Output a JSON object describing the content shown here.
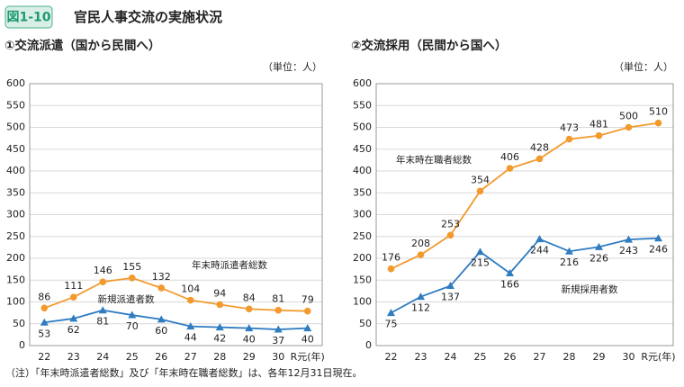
{
  "header": {
    "badge": "図1-10",
    "title": "官民人事交流の実施状況"
  },
  "chart_data": [
    {
      "type": "line",
      "title": "①交流派遣（国から民間へ）",
      "unit": "（単位：人）",
      "categories": [
        "22",
        "23",
        "24",
        "25",
        "26",
        "27",
        "28",
        "29",
        "30",
        "R元(年)"
      ],
      "ylim": [
        0,
        600
      ],
      "yticks": [
        0,
        50,
        100,
        150,
        200,
        250,
        300,
        350,
        400,
        450,
        500,
        550,
        600
      ],
      "grid": true,
      "series": [
        {
          "name": "年末時派遣者総数",
          "color": "#f39a2e",
          "marker": "circle",
          "values": [
            86,
            111,
            146,
            155,
            132,
            104,
            94,
            84,
            81,
            79
          ]
        },
        {
          "name": "新規派遣者数",
          "color": "#2f7cc1",
          "marker": "triangle",
          "values": [
            53,
            62,
            81,
            70,
            60,
            44,
            42,
            40,
            37,
            40
          ]
        }
      ]
    },
    {
      "type": "line",
      "title": "②交流採用（民間から国へ）",
      "unit": "（単位：人）",
      "categories": [
        "22",
        "23",
        "24",
        "25",
        "26",
        "27",
        "28",
        "29",
        "30",
        "R元(年)"
      ],
      "ylim": [
        0,
        600
      ],
      "yticks": [
        0,
        50,
        100,
        150,
        200,
        250,
        300,
        350,
        400,
        450,
        500,
        550,
        600
      ],
      "grid": true,
      "series": [
        {
          "name": "年末時在職者総数",
          "color": "#f39a2e",
          "marker": "circle",
          "values": [
            176,
            208,
            253,
            354,
            406,
            428,
            473,
            481,
            500,
            510
          ]
        },
        {
          "name": "新規採用者数",
          "color": "#2f7cc1",
          "marker": "triangle",
          "values": [
            75,
            112,
            137,
            215,
            166,
            244,
            216,
            226,
            243,
            246
          ]
        }
      ]
    }
  ],
  "note": "（注）「年末時派遣者総数」及び「年末時在職者総数」は、各年12月31日現在。"
}
